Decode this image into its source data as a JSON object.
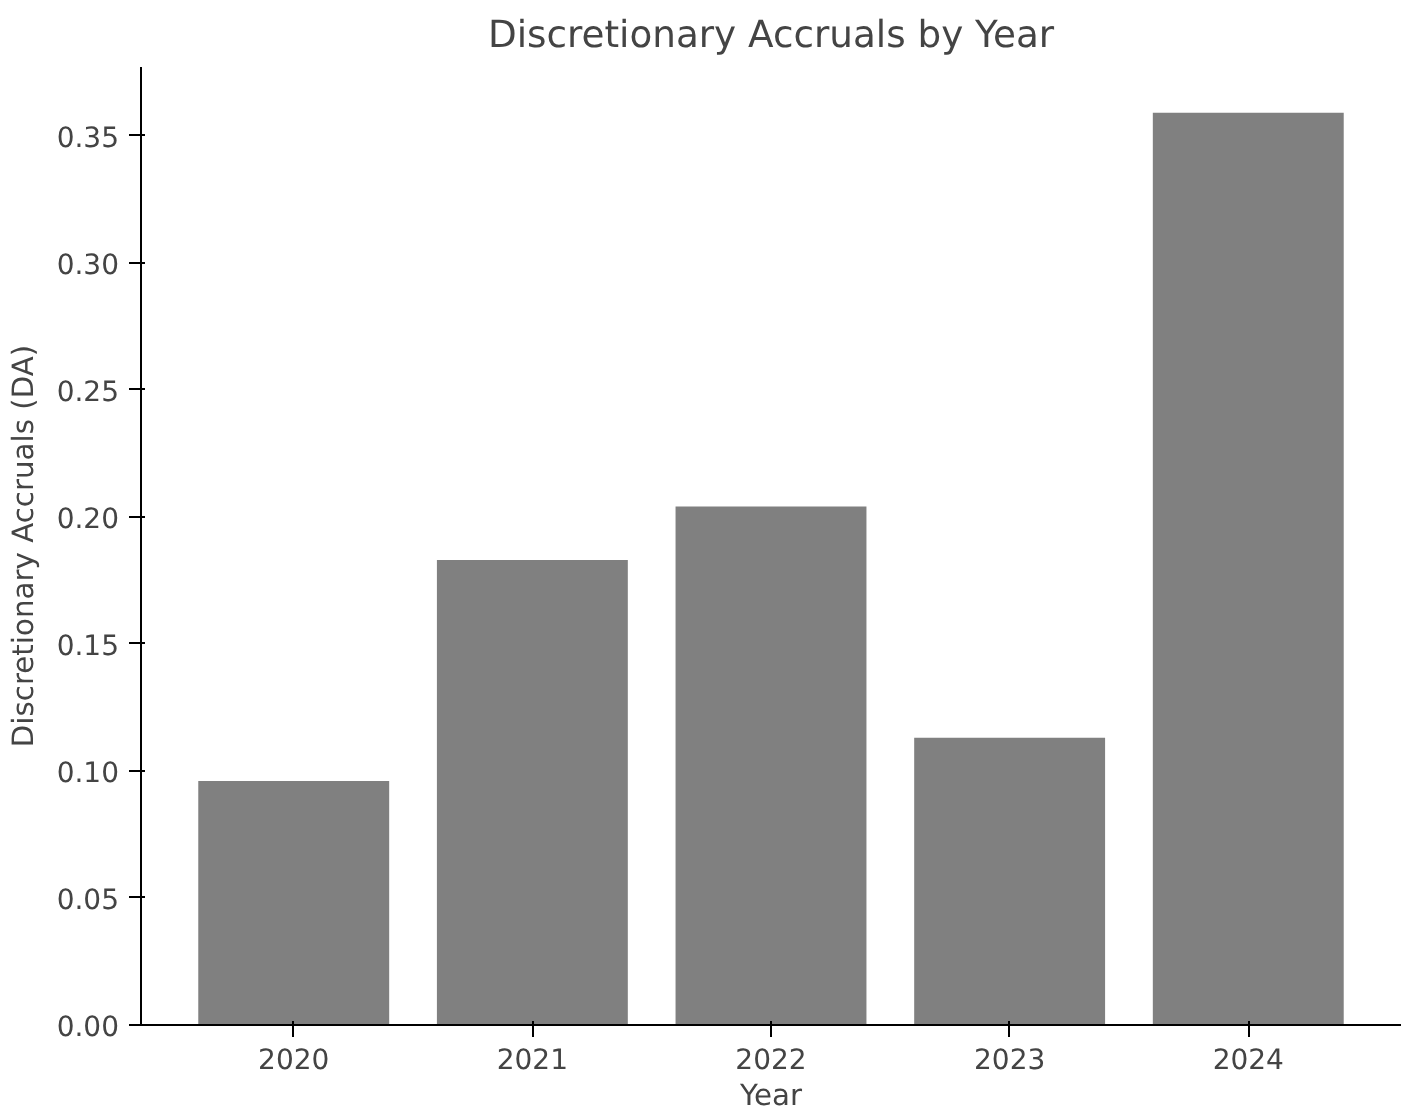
{
  "chart_data": {
    "type": "bar",
    "title": "Discretionary Accruals by Year",
    "xlabel": "Year",
    "ylabel": "Discretionary Accruals (DA)",
    "categories": [
      "2020",
      "2021",
      "2022",
      "2023",
      "2024"
    ],
    "values": [
      0.096,
      0.183,
      0.204,
      0.113,
      0.359
    ],
    "color": "#808080",
    "ylim": [
      0,
      0.377
    ],
    "yticks": [
      {
        "value": 0,
        "label": "0.00"
      },
      0.05,
      {
        "value": 0.1,
        "label": "0.10"
      },
      0.15,
      {
        "value": 0.2,
        "label": "0.20"
      },
      0.25,
      {
        "value": 0.3,
        "label": "0.30"
      },
      0.35
    ],
    "grid": false
  }
}
